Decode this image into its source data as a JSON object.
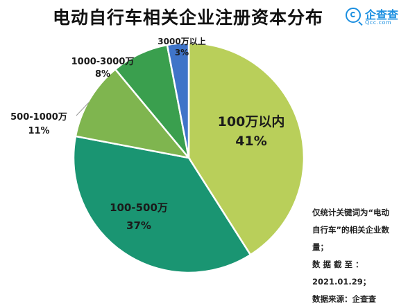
{
  "title": "电动自行车相关企业注册资本分布",
  "brand": {
    "name": "企查查",
    "url": "Qcc.com",
    "icon": "qcc-logo-icon",
    "color": "#1b8fe0"
  },
  "chart_data": {
    "type": "pie",
    "title": "电动自行车相关企业注册资本分布",
    "slices": [
      {
        "label": "100万以内",
        "value": 41,
        "display": "41%",
        "color": "#b9cf5a"
      },
      {
        "label": "100-500万",
        "value": 37,
        "display": "37%",
        "color": "#1a9572"
      },
      {
        "label": "500-1000万",
        "value": 11,
        "display": "11%",
        "color": "#7fb54f"
      },
      {
        "label": "1000-3000万",
        "value": 8,
        "display": "8%",
        "color": "#3a9f4e"
      },
      {
        "label": "3000万以上",
        "value": 3,
        "display": "3%",
        "color": "#3f74c8"
      }
    ]
  },
  "notes": {
    "line1": "仅统计关键词为“电动",
    "line2": "自行车”的相关企业数",
    "line3": "量；",
    "line4": "数  据  截  至  ：",
    "line5": "2021.01.29；",
    "line6": "数据来源：企查查"
  }
}
